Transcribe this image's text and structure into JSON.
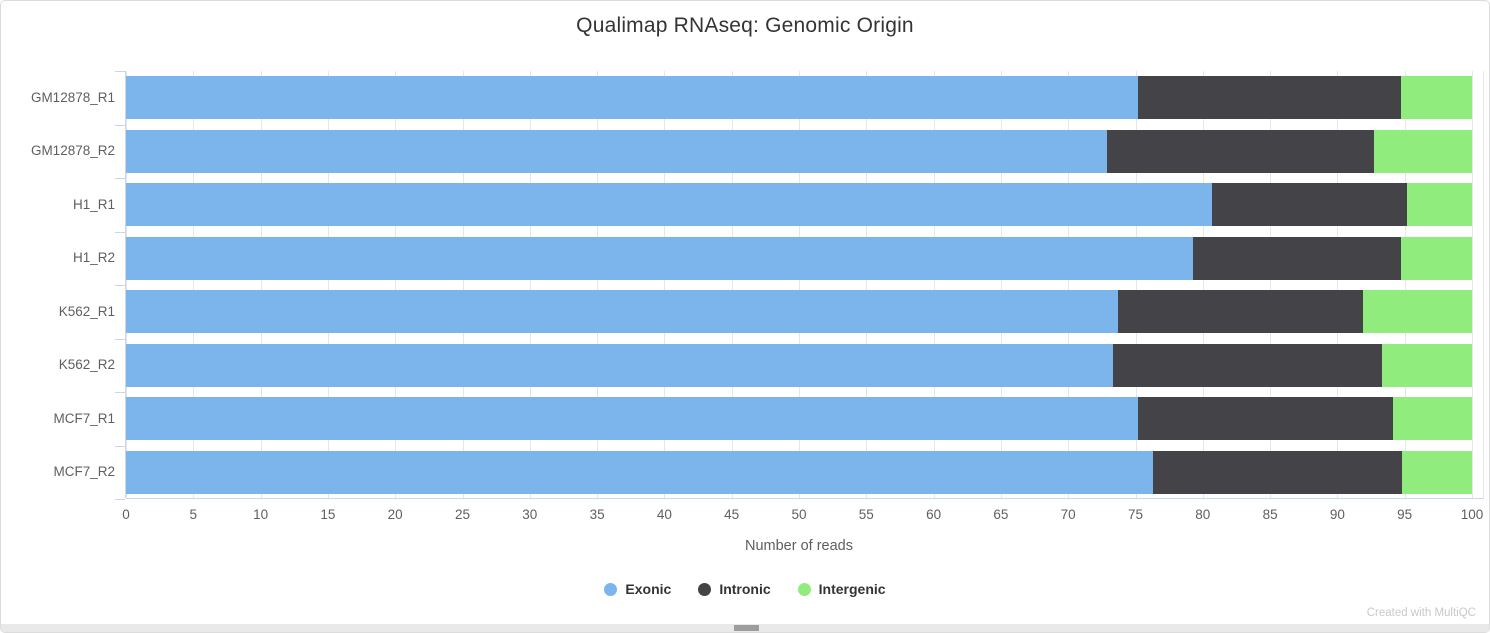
{
  "chart": {
    "title": "Qualimap RNAseq: Genomic Origin",
    "xlabel": "Number of reads",
    "credit": "Created with MultiQC"
  },
  "chart_data": {
    "type": "bar",
    "orientation": "horizontal",
    "stacked": true,
    "grid": true,
    "legend_position": "bottom",
    "title": "Qualimap RNAseq: Genomic Origin",
    "xlabel": "Number of reads",
    "ylabel": "",
    "xlim": [
      0,
      100.9
    ],
    "xticks": [
      0,
      5,
      10,
      15,
      20,
      25,
      30,
      35,
      40,
      45,
      50,
      55,
      60,
      65,
      70,
      75,
      80,
      85,
      90,
      95,
      100
    ],
    "categories": [
      "GM12878_R1",
      "GM12878_R2",
      "H1_R1",
      "H1_R2",
      "K562_R1",
      "K562_R2",
      "MCF7_R1",
      "MCF7_R2"
    ],
    "series": [
      {
        "name": "Exonic",
        "color": "#7cb5ec",
        "values": [
          75.2,
          72.9,
          80.7,
          79.3,
          73.7,
          73.3,
          75.2,
          76.3
        ]
      },
      {
        "name": "Intronic",
        "color": "#434348",
        "values": [
          19.5,
          19.8,
          14.5,
          15.4,
          18.2,
          20.0,
          18.9,
          18.5
        ]
      },
      {
        "name": "Intergenic",
        "color": "#90ed7d",
        "values": [
          5.3,
          7.3,
          4.8,
          5.3,
          8.1,
          6.7,
          5.9,
          5.2
        ]
      }
    ]
  },
  "colors": {
    "gridline": "#e6e6e6",
    "axis": "#ccd6eb",
    "tick_label": "#5f5f5f",
    "title_text": "#343434",
    "credit_text": "#c9c9c9"
  }
}
